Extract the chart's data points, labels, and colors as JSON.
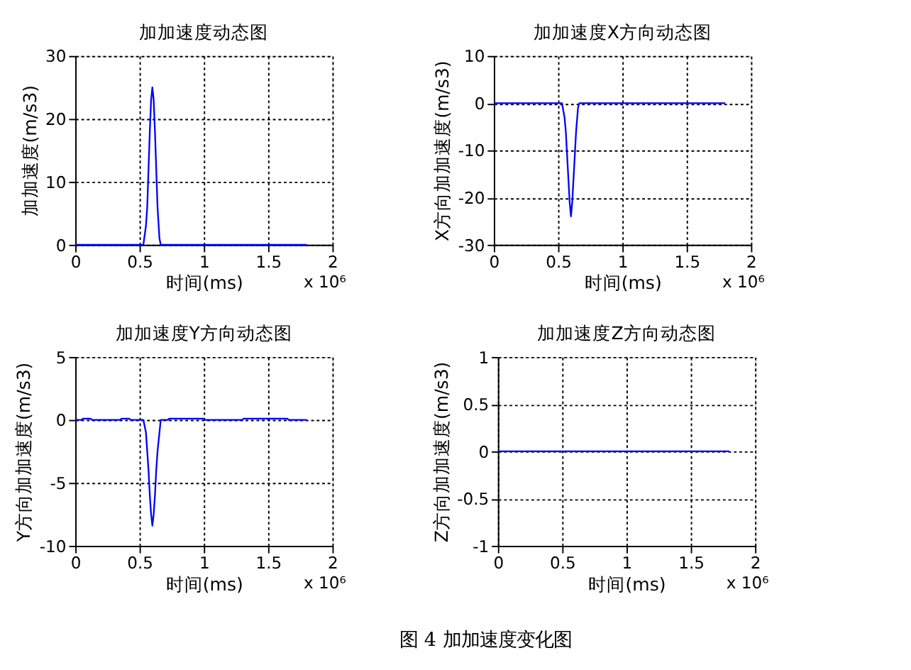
{
  "chart_data": [
    {
      "type": "line",
      "title": "加加速度动态图",
      "xlabel": "时间(ms)",
      "ylabel": "加加速度(m/s3)",
      "x": [
        0,
        0.53,
        0.55,
        0.56,
        0.57,
        0.58,
        0.59,
        0.6,
        0.61,
        0.62,
        0.63,
        0.64,
        0.655,
        0.665,
        1.8
      ],
      "series": [
        {
          "color": "#0000ff",
          "values": [
            0,
            0,
            3,
            6,
            12,
            18,
            23,
            25,
            23,
            18,
            12,
            6,
            1,
            0,
            0
          ]
        }
      ],
      "xlim": [
        0,
        2
      ],
      "xticks": [
        0,
        0.5,
        1,
        1.5,
        2
      ],
      "ylim": [
        0,
        30
      ],
      "yticks": [
        0,
        10,
        20,
        30
      ],
      "grid": true,
      "line_style": "solid",
      "annotations": [
        "x 10⁶"
      ]
    },
    {
      "type": "line",
      "title": "加加速度X方向动态图",
      "xlabel": "时间(ms)",
      "ylabel": "X方向加加速度(m/s3)",
      "x": [
        0,
        0.53,
        0.55,
        0.56,
        0.57,
        0.58,
        0.59,
        0.6,
        0.61,
        0.62,
        0.63,
        0.64,
        0.655,
        0.665,
        1.8
      ],
      "series": [
        {
          "color": "#0000ff",
          "values": [
            0,
            0,
            -3,
            -6,
            -11,
            -16,
            -21,
            -24,
            -21,
            -16,
            -11,
            -6,
            -1,
            0,
            0
          ]
        }
      ],
      "xlim": [
        0,
        2
      ],
      "xticks": [
        0,
        0.5,
        1,
        1.5,
        2
      ],
      "ylim": [
        -30,
        10
      ],
      "yticks": [
        -30,
        -20,
        -10,
        0,
        10
      ],
      "grid": true,
      "line_style": "solid",
      "annotations": [
        "x 10⁶"
      ]
    },
    {
      "type": "line",
      "title": "加加速度Y方向动态图",
      "xlabel": "时间(ms)",
      "ylabel": "Y方向加加速度(m/s3)",
      "x": [
        0,
        0.05,
        0.06,
        0.12,
        0.13,
        0.35,
        0.36,
        0.42,
        0.43,
        0.53,
        0.55,
        0.56,
        0.57,
        0.58,
        0.59,
        0.6,
        0.61,
        0.62,
        0.63,
        0.64,
        0.655,
        0.665,
        0.72,
        0.73,
        1.0,
        1.01,
        1.3,
        1.31,
        1.65,
        1.66,
        1.8
      ],
      "series": [
        {
          "color": "#0000ff",
          "values": [
            0,
            0,
            0.1,
            0.1,
            0,
            0,
            0.1,
            0.1,
            0,
            0,
            -1,
            -2.5,
            -4,
            -6,
            -7.5,
            -8.4,
            -7.5,
            -6,
            -4,
            -2.5,
            -1,
            0,
            0,
            0.1,
            0.1,
            0,
            0,
            0.1,
            0.1,
            0,
            0
          ]
        }
      ],
      "xlim": [
        0,
        2
      ],
      "xticks": [
        0,
        0.5,
        1,
        1.5,
        2
      ],
      "ylim": [
        -10,
        5
      ],
      "yticks": [
        -10,
        -5,
        0,
        5
      ],
      "grid": true,
      "line_style": "solid",
      "annotations": [
        "x 10⁶"
      ]
    },
    {
      "type": "line",
      "title": "加加速度Z方向动态图",
      "xlabel": "时间(ms)",
      "ylabel": "Z方向加加速度(m/s3)",
      "x": [
        0,
        1.8
      ],
      "series": [
        {
          "color": "#0000ff",
          "values": [
            0,
            0
          ]
        }
      ],
      "xlim": [
        0,
        2
      ],
      "xticks": [
        0,
        0.5,
        1,
        1.5,
        2
      ],
      "ylim": [
        -1,
        1
      ],
      "yticks": [
        -1,
        -0.5,
        0,
        0.5,
        1
      ],
      "grid": true,
      "line_style": "solid",
      "annotations": [
        "x 10⁶"
      ]
    },
    {
      "type": "other",
      "annotations": [
        "图 4 加加速度变化图"
      ]
    }
  ]
}
